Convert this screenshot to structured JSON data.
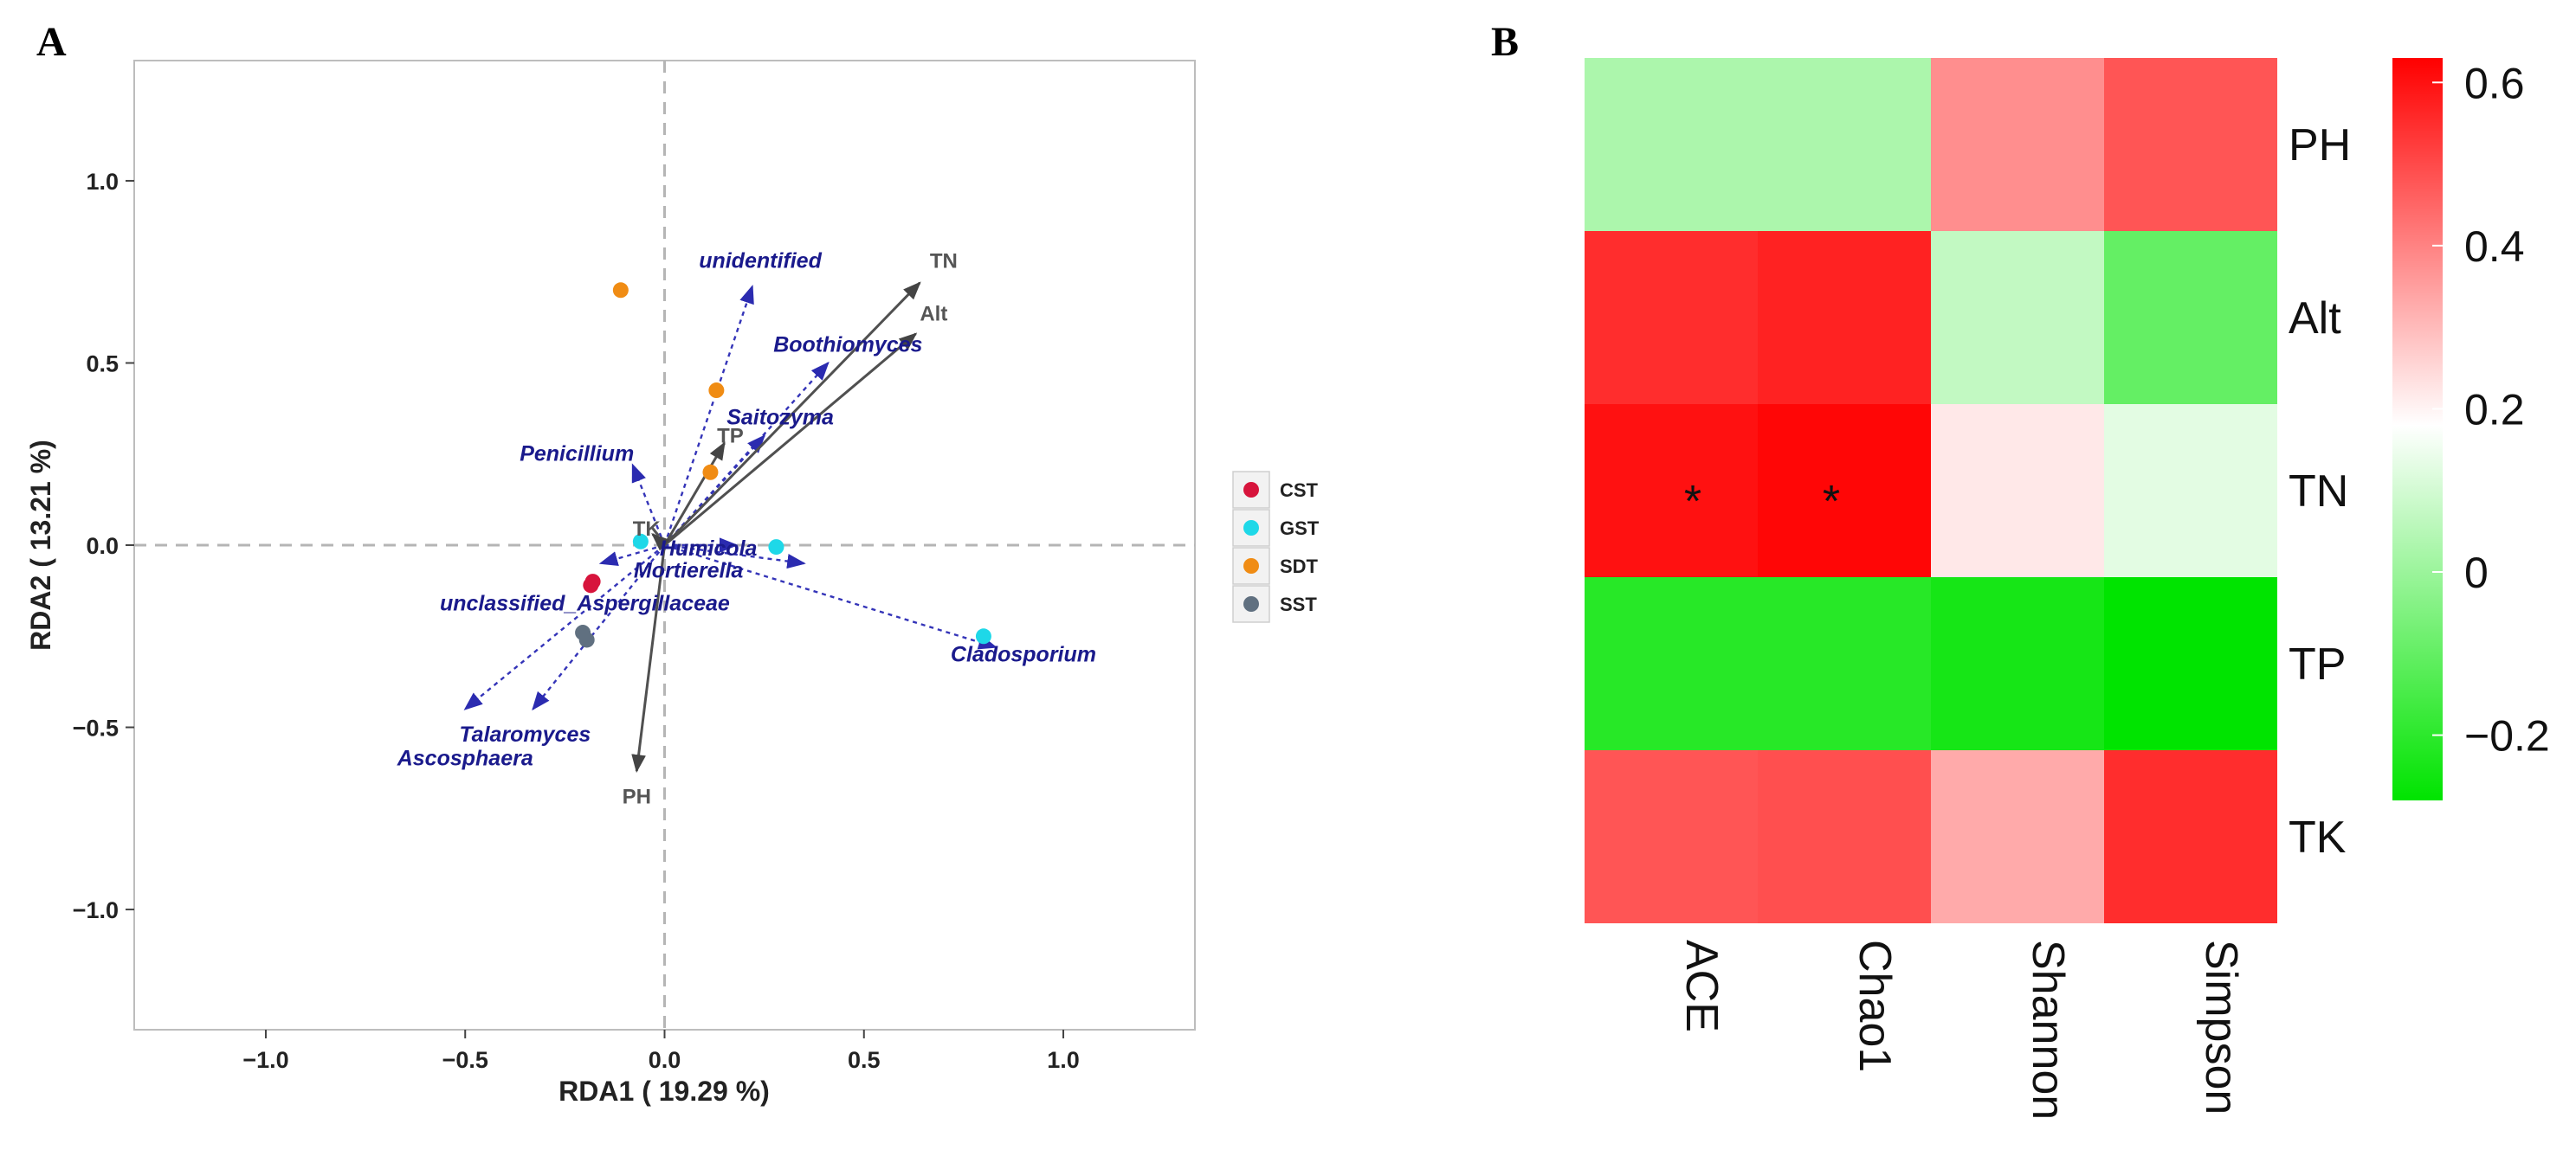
{
  "panels": {
    "a_label": "A",
    "b_label": "B"
  },
  "chart_data": [
    {
      "type": "scatter",
      "subtype": "rda-biplot",
      "xlabel": "RDA1 ( 19.29 %)",
      "ylabel": "RDA2 ( 13.21 %)",
      "xlim": [
        -1.33,
        1.33
      ],
      "ylim": [
        -1.33,
        1.33
      ],
      "xticks": [
        -1.0,
        -0.5,
        0.0,
        0.5,
        1.0
      ],
      "xtick_labels": [
        "−1.0",
        "−0.5",
        "0.0",
        "0.5",
        "1.0"
      ],
      "yticks": [
        1.0,
        0.5,
        0.0,
        -0.5,
        -1.0
      ],
      "ytick_labels": [
        "1.0",
        "0.5",
        "0.0",
        "−0.5",
        "−1.0"
      ],
      "groups": [
        {
          "name": "CST",
          "color": "#d7143c",
          "points": [
            [
              -0.18,
              -0.1
            ],
            [
              -0.185,
              -0.11
            ]
          ]
        },
        {
          "name": "GST",
          "color": "#1ed8e8",
          "points": [
            [
              -0.06,
              0.01
            ],
            [
              0.28,
              -0.005
            ],
            [
              0.8,
              -0.25
            ]
          ]
        },
        {
          "name": "SDT",
          "color": "#f08c14",
          "points": [
            [
              -0.11,
              0.7
            ],
            [
              0.13,
              0.425
            ],
            [
              0.115,
              0.2
            ]
          ]
        },
        {
          "name": "SST",
          "color": "#607080",
          "points": [
            [
              -0.205,
              -0.24
            ],
            [
              -0.195,
              -0.26
            ]
          ]
        }
      ],
      "env_vectors": [
        {
          "name": "TN",
          "x": 0.64,
          "y": 0.72,
          "lx": 0.7,
          "ly": 0.78
        },
        {
          "name": "Alt",
          "x": 0.63,
          "y": 0.58,
          "lx": 0.675,
          "ly": 0.635
        },
        {
          "name": "TP",
          "x": 0.15,
          "y": 0.28,
          "lx": 0.165,
          "ly": 0.3
        },
        {
          "name": "TK",
          "x": -0.03,
          "y": 0.03,
          "lx": -0.045,
          "ly": 0.045
        },
        {
          "name": "PH",
          "x": -0.07,
          "y": -0.62,
          "lx": -0.07,
          "ly": -0.69
        }
      ],
      "species_vectors": [
        {
          "name": "unidentified",
          "x": 0.22,
          "y": 0.71,
          "lx": 0.24,
          "ly": 0.78
        },
        {
          "name": "Boothiomyces",
          "x": 0.41,
          "y": 0.5,
          "lx": 0.46,
          "ly": 0.55
        },
        {
          "name": "Saitozyma",
          "x": 0.25,
          "y": 0.3,
          "lx": 0.29,
          "ly": 0.35
        },
        {
          "name": "Penicillium",
          "x": -0.08,
          "y": 0.22,
          "lx": -0.22,
          "ly": 0.25
        },
        {
          "name": "Humicola",
          "x": 0.18,
          "y": 0.0,
          "lx": 0.11,
          "ly": -0.01
        },
        {
          "name": "Mortierella",
          "x": 0.35,
          "y": -0.05,
          "lx": 0.06,
          "ly": -0.07
        },
        {
          "name": "unclassified_Aspergillaceae",
          "x": -0.16,
          "y": -0.05,
          "lx": -0.2,
          "ly": -0.16
        },
        {
          "name": "Cladosporium",
          "x": 0.83,
          "y": -0.28,
          "lx": 0.9,
          "ly": -0.3
        },
        {
          "name": "Talaromyces",
          "x": -0.33,
          "y": -0.45,
          "lx": -0.35,
          "ly": -0.52
        },
        {
          "name": "Ascosphaera",
          "x": -0.5,
          "y": -0.45,
          "lx": -0.5,
          "ly": -0.585
        }
      ],
      "legend": [
        "CST",
        "GST",
        "SDT",
        "SST"
      ],
      "legend_position": "right",
      "grid": false
    },
    {
      "type": "heatmap",
      "rows": [
        "PH",
        "Alt",
        "TN",
        "TP",
        "TK"
      ],
      "columns": [
        "ACE",
        "Chao1",
        "Shannon",
        "Simpson"
      ],
      "values": [
        [
          0.03,
          0.03,
          0.38,
          0.48
        ],
        [
          0.55,
          0.57,
          0.07,
          -0.1
        ],
        [
          0.6,
          0.62,
          0.22,
          0.13
        ],
        [
          -0.21,
          -0.21,
          -0.24,
          -0.28
        ],
        [
          0.48,
          0.49,
          0.33,
          0.55
        ]
      ],
      "significance": [
        [
          "",
          "",
          "",
          ""
        ],
        [
          "",
          "",
          "",
          ""
        ],
        [
          "*",
          "*",
          "",
          ""
        ],
        [
          "",
          "",
          "",
          ""
        ],
        [
          "",
          "",
          "",
          ""
        ]
      ],
      "colorbar": {
        "min": -0.28,
        "max": 0.63,
        "mid": 0.18,
        "colors": {
          "low": "#00e400",
          "mid": "#ffffff",
          "high": "#ff0000"
        },
        "ticks": [
          0.6,
          0.4,
          0.2,
          0,
          -0.2
        ],
        "tick_labels": [
          "0.6",
          "0.4",
          "0.2",
          "0",
          "−0.2"
        ]
      }
    }
  ]
}
